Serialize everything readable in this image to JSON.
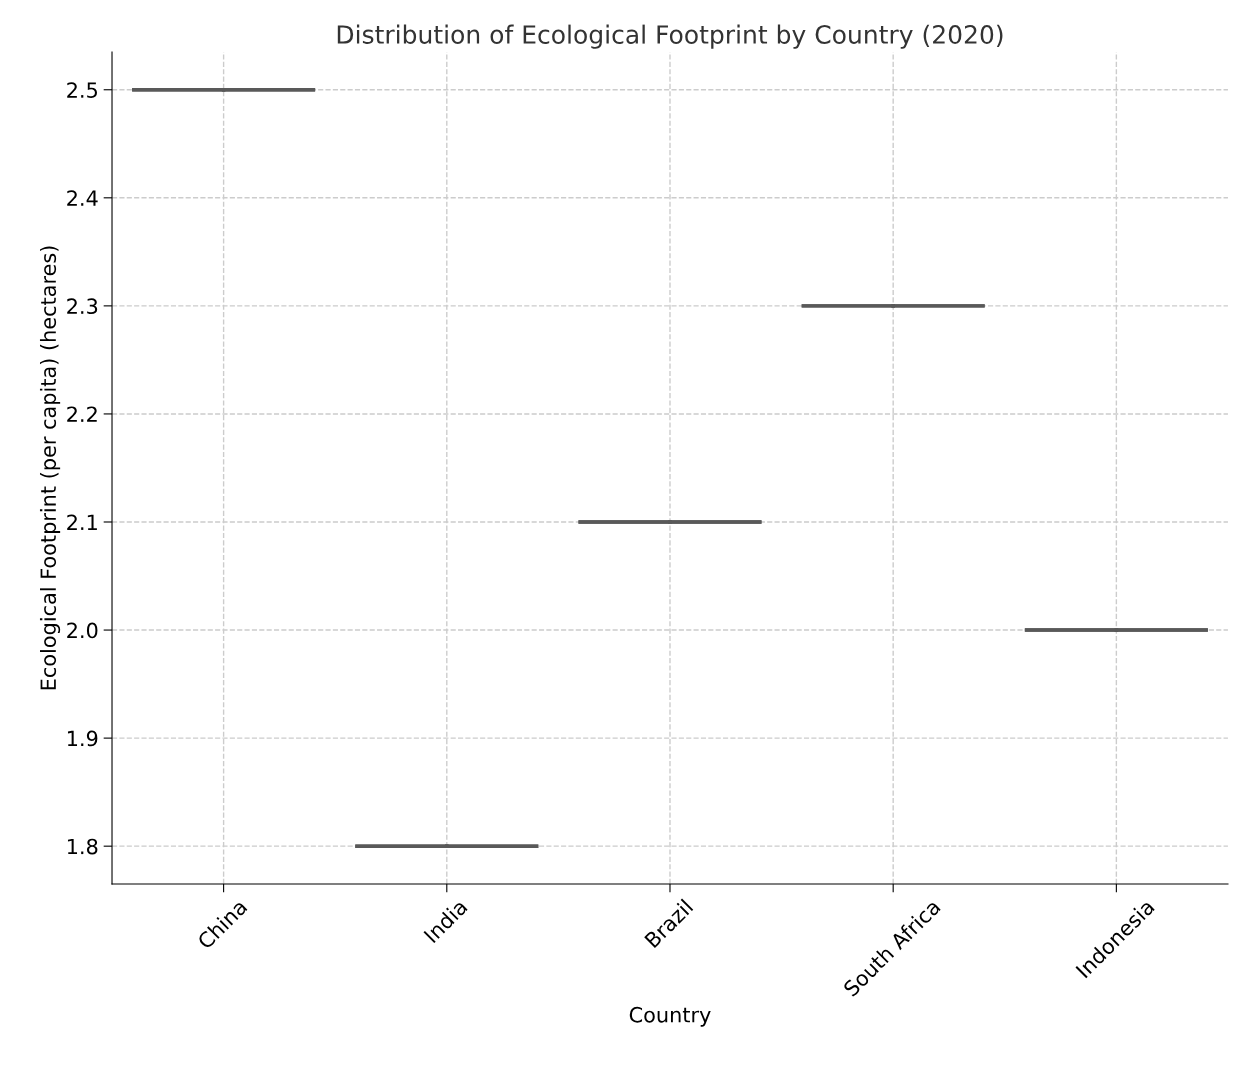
{
  "chart_data": {
    "type": "box",
    "title": "Distribution of Ecological Footprint by Country (2020)",
    "xlabel": "Country",
    "ylabel": "Ecological Footprint (per capita) (hectares)",
    "categories": [
      "China",
      "India",
      "Brazil",
      "South Africa",
      "Indonesia"
    ],
    "boxes": [
      {
        "low": 2.5,
        "q1": 2.5,
        "median": 2.5,
        "q3": 2.5,
        "high": 2.5
      },
      {
        "low": 1.8,
        "q1": 1.8,
        "median": 1.8,
        "q3": 1.8,
        "high": 1.8
      },
      {
        "low": 2.1,
        "q1": 2.1,
        "median": 2.1,
        "q3": 2.1,
        "high": 2.1
      },
      {
        "low": 2.3,
        "q1": 2.3,
        "median": 2.3,
        "q3": 2.3,
        "high": 2.3
      },
      {
        "low": 2.0,
        "q1": 2.0,
        "median": 2.0,
        "q3": 2.0,
        "high": 2.0
      }
    ],
    "color": "#595959",
    "ylim": [
      1.765,
      2.535
    ],
    "yticks": [
      1.8,
      1.9,
      {
        "value": 2,
        "label": "2.0"
      },
      2.1,
      2.2,
      2.3,
      2.4,
      2.5
    ],
    "grid": true
  }
}
